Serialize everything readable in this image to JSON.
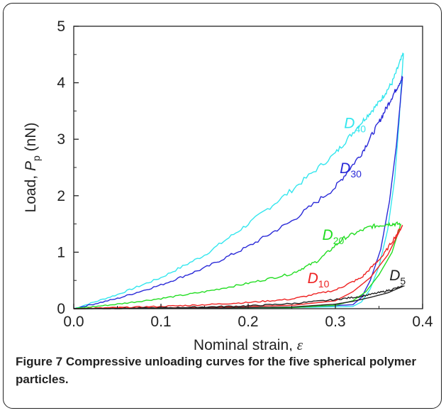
{
  "caption": {
    "label": "Figure 7",
    "text": "Compressive unloading curves for the five spherical polymer particles."
  },
  "chart_data": {
    "type": "line",
    "xlabel": "Nominal strain, ",
    "xlabel_symbol": "ε",
    "ylabel": "Load, ",
    "ylabel_symbol": "P",
    "ylabel_sub": "p",
    "ylabel_unit": " (nN)",
    "xlim": [
      0.0,
      0.4
    ],
    "ylim": [
      0,
      5
    ],
    "xticks": [
      "0.0",
      "0.1",
      "0.2",
      "0.3",
      "0.4"
    ],
    "yticks": [
      "0",
      "1",
      "2",
      "3",
      "4",
      "5"
    ],
    "series": [
      {
        "name": "D",
        "sub": "40",
        "color": "#33e6ee",
        "loop": [
          [
            0,
            0
          ],
          [
            0.05,
            0.25
          ],
          [
            0.1,
            0.55
          ],
          [
            0.15,
            0.95
          ],
          [
            0.2,
            1.5
          ],
          [
            0.25,
            2.1
          ],
          [
            0.3,
            2.75
          ],
          [
            0.33,
            3.3
          ],
          [
            0.35,
            3.65
          ],
          [
            0.365,
            4.0
          ],
          [
            0.378,
            4.52
          ],
          [
            0.373,
            3.3
          ],
          [
            0.368,
            2.3
          ],
          [
            0.36,
            1.4
          ],
          [
            0.35,
            0.75
          ],
          [
            0.34,
            0.35
          ],
          [
            0.33,
            0.12
          ],
          [
            0.32,
            0.04
          ],
          [
            0.25,
            0.02
          ],
          [
            0.1,
            0.01
          ],
          [
            0,
            0
          ]
        ],
        "label_at": [
          0.31,
          3.2
        ]
      },
      {
        "name": "D",
        "sub": "30",
        "color": "#2a2ad8",
        "loop": [
          [
            0,
            0
          ],
          [
            0.05,
            0.18
          ],
          [
            0.1,
            0.42
          ],
          [
            0.15,
            0.72
          ],
          [
            0.2,
            1.1
          ],
          [
            0.25,
            1.55
          ],
          [
            0.3,
            2.15
          ],
          [
            0.33,
            2.75
          ],
          [
            0.35,
            3.3
          ],
          [
            0.365,
            3.75
          ],
          [
            0.377,
            4.1
          ],
          [
            0.37,
            2.9
          ],
          [
            0.362,
            1.9
          ],
          [
            0.352,
            1.05
          ],
          [
            0.34,
            0.5
          ],
          [
            0.33,
            0.2
          ],
          [
            0.32,
            0.07
          ],
          [
            0.25,
            0.02
          ],
          [
            0.1,
            0.01
          ],
          [
            0,
            0
          ]
        ],
        "label_at": [
          0.305,
          2.4
        ]
      },
      {
        "name": "D",
        "sub": "20",
        "color": "#22dd22",
        "loop": [
          [
            0,
            0
          ],
          [
            0.05,
            0.08
          ],
          [
            0.1,
            0.18
          ],
          [
            0.15,
            0.3
          ],
          [
            0.2,
            0.45
          ],
          [
            0.25,
            0.62
          ],
          [
            0.28,
            0.85
          ],
          [
            0.31,
            1.25
          ],
          [
            0.34,
            1.45
          ],
          [
            0.36,
            1.5
          ],
          [
            0.375,
            1.5
          ],
          [
            0.365,
            1.0
          ],
          [
            0.35,
            0.6
          ],
          [
            0.335,
            0.3
          ],
          [
            0.32,
            0.14
          ],
          [
            0.3,
            0.06
          ],
          [
            0.25,
            0.02
          ],
          [
            0.1,
            0.01
          ],
          [
            0,
            0
          ]
        ],
        "label_at": [
          0.285,
          1.22
        ]
      },
      {
        "name": "D",
        "sub": "10",
        "color": "#ee2222",
        "loop": [
          [
            0,
            0
          ],
          [
            0.05,
            0.02
          ],
          [
            0.1,
            0.04
          ],
          [
            0.15,
            0.07
          ],
          [
            0.2,
            0.11
          ],
          [
            0.25,
            0.17
          ],
          [
            0.3,
            0.33
          ],
          [
            0.33,
            0.55
          ],
          [
            0.355,
            0.95
          ],
          [
            0.377,
            1.48
          ],
          [
            0.36,
            0.95
          ],
          [
            0.34,
            0.55
          ],
          [
            0.32,
            0.3
          ],
          [
            0.3,
            0.14
          ],
          [
            0.25,
            0.06
          ],
          [
            0.15,
            0.02
          ],
          [
            0.05,
            0.01
          ],
          [
            0,
            0
          ]
        ],
        "label_at": [
          0.268,
          0.45
        ]
      },
      {
        "name": "D",
        "sub": "5",
        "color": "#222222",
        "loop": [
          [
            0,
            0
          ],
          [
            0.05,
            0.005
          ],
          [
            0.1,
            0.015
          ],
          [
            0.15,
            0.03
          ],
          [
            0.2,
            0.05
          ],
          [
            0.25,
            0.09
          ],
          [
            0.3,
            0.16
          ],
          [
            0.33,
            0.22
          ],
          [
            0.355,
            0.3
          ],
          [
            0.378,
            0.4
          ],
          [
            0.36,
            0.28
          ],
          [
            0.34,
            0.2
          ],
          [
            0.32,
            0.13
          ],
          [
            0.3,
            0.08
          ],
          [
            0.25,
            0.03
          ],
          [
            0.15,
            0.01
          ],
          [
            0,
            0
          ]
        ],
        "label_at": [
          0.362,
          0.5
        ]
      }
    ]
  }
}
